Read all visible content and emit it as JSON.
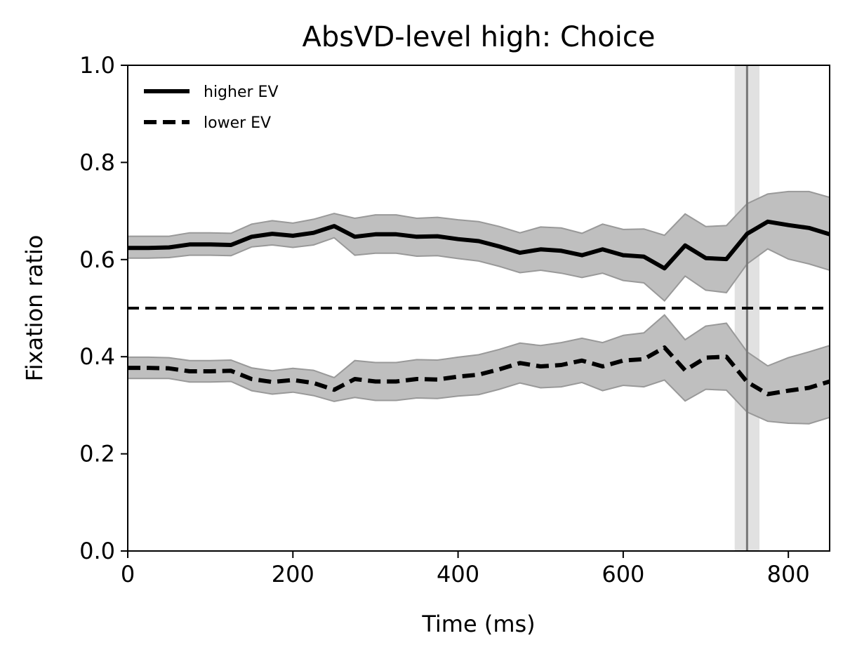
{
  "chart_data": {
    "type": "line",
    "title": "AbsVD-level high: Choice",
    "xlabel": "Time (ms)",
    "ylabel": "Fixation ratio",
    "xlim": [
      0,
      850
    ],
    "ylim": [
      0.0,
      1.0
    ],
    "x_ticks": [
      "0",
      "200",
      "400",
      "600",
      "800"
    ],
    "y_ticks": [
      "0.0",
      "0.2",
      "0.4",
      "0.6",
      "0.8",
      "1.0"
    ],
    "grid": false,
    "legend_position": "top-left",
    "x": [
      0,
      25,
      50,
      75,
      100,
      125,
      150,
      175,
      200,
      225,
      250,
      275,
      300,
      325,
      350,
      375,
      400,
      425,
      450,
      475,
      500,
      525,
      550,
      575,
      600,
      625,
      650,
      675,
      700,
      725,
      750,
      775,
      800,
      825,
      850
    ],
    "series": [
      {
        "name": "higher EV",
        "style": "solid",
        "color": "#000000",
        "values": [
          0.624,
          0.624,
          0.625,
          0.631,
          0.631,
          0.63,
          0.647,
          0.653,
          0.649,
          0.655,
          0.669,
          0.647,
          0.652,
          0.652,
          0.647,
          0.648,
          0.642,
          0.638,
          0.627,
          0.614,
          0.621,
          0.618,
          0.609,
          0.621,
          0.609,
          0.606,
          0.582,
          0.629,
          0.603,
          0.601,
          0.653,
          0.678,
          0.671,
          0.665,
          0.652
        ],
        "band_upper": [
          0.648,
          0.648,
          0.648,
          0.655,
          0.655,
          0.654,
          0.673,
          0.68,
          0.675,
          0.683,
          0.695,
          0.685,
          0.692,
          0.692,
          0.685,
          0.687,
          0.682,
          0.678,
          0.668,
          0.655,
          0.667,
          0.665,
          0.654,
          0.673,
          0.662,
          0.663,
          0.65,
          0.694,
          0.668,
          0.67,
          0.715,
          0.735,
          0.74,
          0.74,
          0.728
        ],
        "band_lower": [
          0.603,
          0.603,
          0.604,
          0.609,
          0.609,
          0.608,
          0.626,
          0.63,
          0.625,
          0.63,
          0.645,
          0.609,
          0.613,
          0.613,
          0.607,
          0.608,
          0.602,
          0.597,
          0.586,
          0.573,
          0.578,
          0.572,
          0.563,
          0.572,
          0.557,
          0.552,
          0.515,
          0.566,
          0.537,
          0.532,
          0.591,
          0.622,
          0.601,
          0.591,
          0.578
        ]
      },
      {
        "name": "lower EV",
        "style": "dashed",
        "color": "#000000",
        "values": [
          0.377,
          0.377,
          0.376,
          0.37,
          0.37,
          0.371,
          0.354,
          0.348,
          0.352,
          0.346,
          0.332,
          0.354,
          0.349,
          0.349,
          0.354,
          0.353,
          0.359,
          0.363,
          0.374,
          0.387,
          0.38,
          0.383,
          0.392,
          0.38,
          0.392,
          0.395,
          0.419,
          0.372,
          0.398,
          0.4,
          0.348,
          0.323,
          0.33,
          0.336,
          0.349
        ],
        "band_upper": [
          0.399,
          0.399,
          0.398,
          0.392,
          0.392,
          0.393,
          0.377,
          0.371,
          0.376,
          0.372,
          0.357,
          0.392,
          0.388,
          0.388,
          0.394,
          0.393,
          0.399,
          0.404,
          0.415,
          0.428,
          0.423,
          0.429,
          0.438,
          0.429,
          0.444,
          0.449,
          0.486,
          0.435,
          0.463,
          0.469,
          0.41,
          0.381,
          0.398,
          0.41,
          0.423
        ],
        "band_lower": [
          0.355,
          0.355,
          0.355,
          0.348,
          0.348,
          0.349,
          0.33,
          0.323,
          0.327,
          0.32,
          0.308,
          0.316,
          0.31,
          0.31,
          0.315,
          0.314,
          0.319,
          0.322,
          0.333,
          0.346,
          0.336,
          0.338,
          0.347,
          0.33,
          0.341,
          0.338,
          0.352,
          0.309,
          0.333,
          0.331,
          0.286,
          0.267,
          0.263,
          0.262,
          0.275
        ]
      }
    ],
    "reference_lines": [
      {
        "orientation": "horizontal",
        "y": 0.5,
        "style": "dashed",
        "color": "#000000"
      },
      {
        "orientation": "vertical",
        "x": 750,
        "x_band": [
          735,
          765
        ],
        "color": "#777777",
        "band_color": "#d9d9d9"
      }
    ],
    "band_color": "#bfbfbf",
    "band_edge_color": "#999999"
  }
}
